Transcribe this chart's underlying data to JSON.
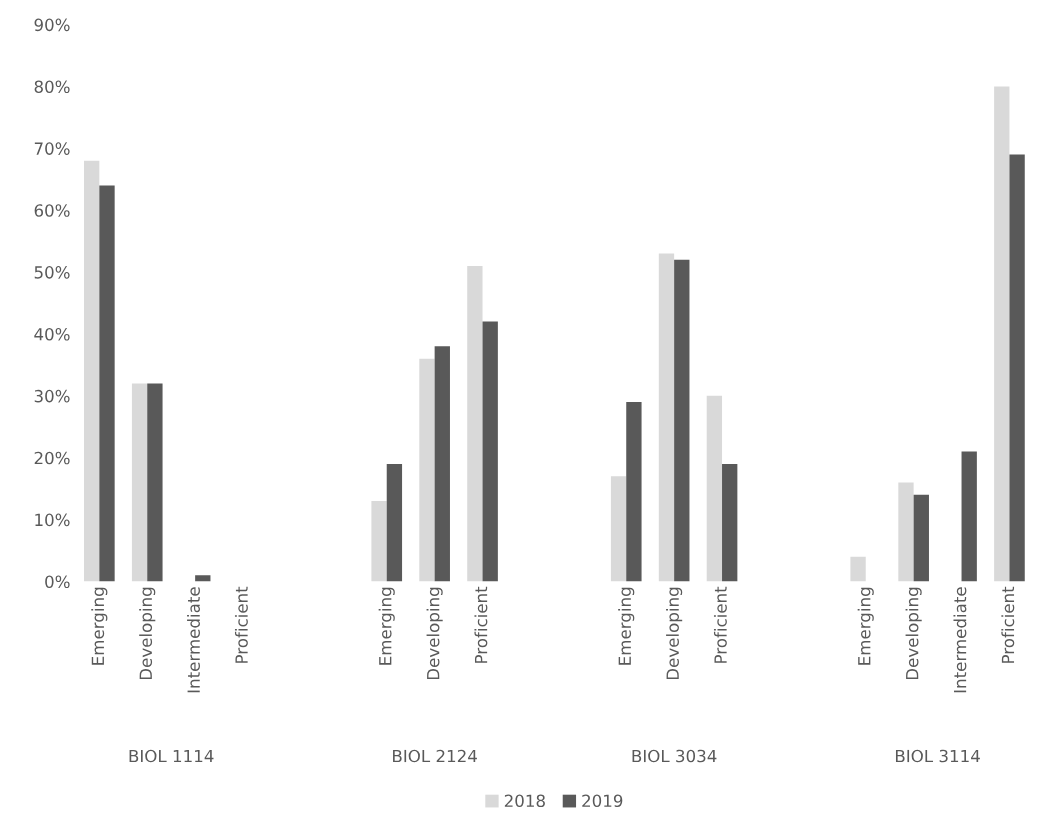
{
  "chart_data": {
    "type": "bar",
    "categories": [
      "Emerging",
      "Developing",
      "Intermediate",
      "Proficient",
      null,
      null,
      "Emerging",
      "Developing",
      "Proficient",
      null,
      null,
      "Emerging",
      "Developing",
      "Proficient",
      null,
      null,
      "Emerging",
      "Developing",
      "Intermediate",
      "Proficient"
    ],
    "series": [
      {
        "name": "2018",
        "color": "#d9d9d9",
        "values": [
          68,
          32,
          0,
          0,
          null,
          null,
          13,
          36,
          51,
          null,
          null,
          17,
          53,
          30,
          null,
          null,
          4,
          16,
          0,
          80
        ]
      },
      {
        "name": "2019",
        "color": "#595959",
        "values": [
          64,
          32,
          1,
          0,
          null,
          null,
          19,
          38,
          42,
          null,
          null,
          29,
          52,
          19,
          null,
          null,
          0,
          14,
          21,
          69
        ]
      }
    ],
    "ylim": [
      0,
      90
    ],
    "yticks": [
      {
        "value": 0,
        "label": "0%"
      },
      {
        "value": 10,
        "label": "10%"
      },
      {
        "value": 20,
        "label": "20%"
      },
      {
        "value": 30,
        "label": "30%"
      },
      {
        "value": 40,
        "label": "40%"
      },
      {
        "value": 50,
        "label": "50%"
      },
      {
        "value": 60,
        "label": "60%"
      },
      {
        "value": 70,
        "label": "70%"
      },
      {
        "value": 80,
        "label": "80%"
      },
      {
        "value": 90,
        "label": "90%"
      }
    ],
    "annotations": [
      "BIOL 1114",
      "BIOL 2124",
      "BIOL 3034",
      "BIOL 3114"
    ],
    "grid": false,
    "legend": "bottom"
  }
}
